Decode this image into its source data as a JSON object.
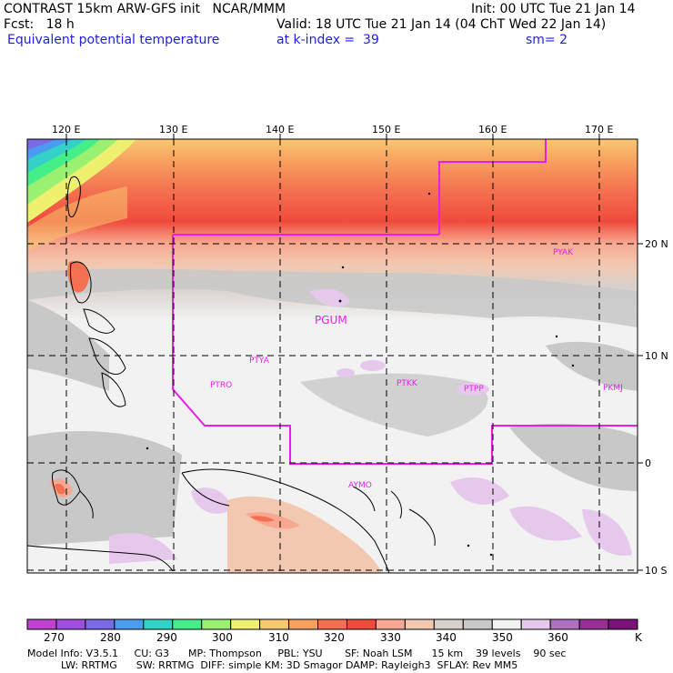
{
  "header": {
    "title": "CONTRAST 15km ARW-GFS init   NCAR/MMM",
    "init": "Init: 00 UTC Tue 21 Jan 14",
    "fcst": "Fcst:   18 h",
    "valid": "Valid: 18 UTC Tue 21 Jan 14 (04 ChT Wed 22 Jan 14)",
    "field": "Equivalent potential temperature",
    "level": "at k-index =  39",
    "smooth": "sm= 2"
  },
  "axes": {
    "lon_labels": [
      "120 E",
      "130 E",
      "140 E",
      "150 E",
      "160 E",
      "170 E"
    ],
    "lat_labels": [
      "20 N",
      "10 N",
      "0",
      "10 S"
    ]
  },
  "stations": [
    "PYAK",
    "PGUM",
    "PTYA",
    "PTRO",
    "PTKK",
    "PTPP",
    "PKMJ",
    "AYMO"
  ],
  "colorbar": {
    "labels": [
      "270",
      "280",
      "290",
      "300",
      "310",
      "320",
      "330",
      "340",
      "350",
      "360"
    ],
    "unit": "K",
    "colors": [
      "#c040d0",
      "#a04ee0",
      "#7a6ae6",
      "#4a9cf0",
      "#33d2c8",
      "#44ee88",
      "#9af070",
      "#eef070",
      "#f8c870",
      "#f8a060",
      "#f47050",
      "#f04a3c",
      "#f8a890",
      "#f2c8b0",
      "#d8d0cc",
      "#c8c8c8",
      "#f2f2f2",
      "#e6c8ec",
      "#b070c0",
      "#982e96",
      "#7a1278"
    ]
  },
  "footer": {
    "line1": "Model Info: V3.5.1     CU: G3      MP: Thompson     PBL: YSU       SF: Noah LSM      15 km    39 levels    90 sec",
    "line2": "LW: RRTMG      SW: RRTMG  DIFF: simple KM: 3D Smagor DAMP: Rayleigh3  SFLAY: Rev MM5"
  }
}
